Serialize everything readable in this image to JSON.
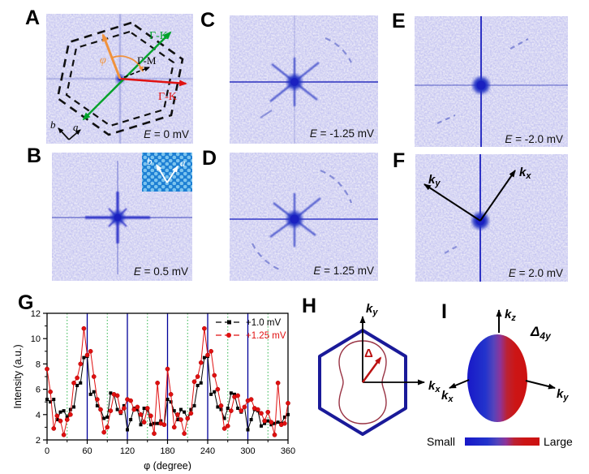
{
  "panels": {
    "A": {
      "label": "A",
      "energy_symbol": "E",
      "energy_value": " = 0 mV",
      "gamma_k_top": "Γ-K",
      "gamma_k_right": "Γ-K",
      "gamma_m": "Γ-M",
      "phi": "φ",
      "lattice_a": "a",
      "lattice_b": "b"
    },
    "B": {
      "label": "B",
      "energy_symbol": "E",
      "energy_value": " = 0.5 mV",
      "inset_a": "a",
      "inset_b": "b"
    },
    "C": {
      "label": "C",
      "energy_symbol": "E",
      "energy_value": " = -1.25 mV"
    },
    "D": {
      "label": "D",
      "energy_symbol": "E",
      "energy_value": " = 1.25 mV"
    },
    "E": {
      "label": "E",
      "energy_symbol": "E",
      "energy_value": " = -2.0 mV"
    },
    "F": {
      "label": "F",
      "energy_symbol": "E",
      "energy_value": " = 2.0 mV",
      "kx_base": "k",
      "kx_sub": "x",
      "ky_base": "k",
      "ky_sub": "y"
    },
    "G": {
      "label": "G"
    },
    "H": {
      "label": "H",
      "kx_base": "k",
      "kx_sub": "x",
      "ky_base": "k",
      "ky_sub": "y",
      "delta": "Δ"
    },
    "I": {
      "label": "I",
      "kx_base": "k",
      "kx_sub": "x",
      "ky_base": "k",
      "ky_sub": "y",
      "kz_base": "k",
      "kz_sub": "z",
      "delta_base": "Δ",
      "delta_sub": "4y",
      "colorbar_small": "Small",
      "colorbar_large": "Large"
    }
  },
  "chart_data": {
    "type": "line",
    "title": "",
    "xlabel": "φ (degree)",
    "ylabel": "Intensity (a.u.)",
    "xlim": [
      0,
      360
    ],
    "ylim": [
      2,
      12
    ],
    "xticks": [
      0,
      60,
      120,
      180,
      240,
      300,
      360
    ],
    "yticks": [
      2,
      4,
      6,
      8,
      10,
      12
    ],
    "x_minor_step": 30,
    "y_minor_step": 1,
    "vlines_solid": {
      "color": "#000099",
      "positions": [
        60,
        120,
        180,
        240,
        300
      ]
    },
    "vlines_dotted": {
      "color": "#2db34a",
      "positions": [
        30,
        90,
        150,
        210,
        270,
        330
      ]
    },
    "legend_position": "top-right",
    "x_step": 5,
    "series": [
      {
        "name": "+1.0 mV",
        "color": "#000000",
        "marker": "square",
        "values": [
          5.2,
          5.0,
          5.2,
          3.6,
          4.2,
          4.3,
          3.8,
          4.4,
          4.6,
          6.3,
          6.5,
          8.5,
          8.6,
          5.6,
          5.8,
          4.7,
          4.4,
          3.7,
          3.8,
          5.7,
          5.6,
          4.4,
          4.1,
          4.7,
          2.8,
          3.6,
          4.5,
          4.4,
          3.2,
          4.5,
          4.4,
          3.2,
          3.3,
          3.3,
          3.5,
          3.2,
          5.2,
          5.0,
          4.3,
          3.6,
          4.4,
          4.2,
          3.7,
          4.4,
          4.7,
          6.3,
          6.5,
          8.5,
          8.6,
          5.6,
          5.8,
          4.6,
          4.4,
          3.7,
          4.5,
          5.7,
          5.6,
          4.5,
          4.2,
          4.6,
          2.8,
          3.6,
          4.4,
          4.3,
          3.1,
          3.3,
          3.5,
          3.2,
          3.3,
          3.4,
          3.3,
          3.8,
          4.0
        ]
      },
      {
        "name": "+1.25 mV",
        "color": "#e01010",
        "marker": "circle",
        "values": [
          7.6,
          5.8,
          2.9,
          3.9,
          3.5,
          2.4,
          3.6,
          4.0,
          6.5,
          6.9,
          8.0,
          10.8,
          8.7,
          9.0,
          7.0,
          5.2,
          4.4,
          2.6,
          3.0,
          4.3,
          5.6,
          5.5,
          4.2,
          4.5,
          5.2,
          5.1,
          4.4,
          4.6,
          4.0,
          3.4,
          4.5,
          3.9,
          2.5,
          6.5,
          3.3,
          3.2,
          7.6,
          5.6,
          3.0,
          4.0,
          3.6,
          2.5,
          3.7,
          4.1,
          6.6,
          7.0,
          8.1,
          10.8,
          8.7,
          9.0,
          7.1,
          6.0,
          4.7,
          2.9,
          3.1,
          4.3,
          5.4,
          5.5,
          4.3,
          4.6,
          5.1,
          5.2,
          4.5,
          4.4,
          4.1,
          3.5,
          4.2,
          3.4,
          2.4,
          6.5,
          3.2,
          3.3,
          4.9
        ]
      }
    ]
  },
  "colors": {
    "fft_background": "#edecf7",
    "fft_feature": "#2020c8",
    "hexagon_blue": "#1a1a99",
    "gap_curve_red": "#993344",
    "arrow_orange": "#f0923c",
    "arrow_green": "#00a22a",
    "arrow_red": "#e01212",
    "gradient_small": "#2222cc",
    "gradient_large": "#cc1111"
  }
}
